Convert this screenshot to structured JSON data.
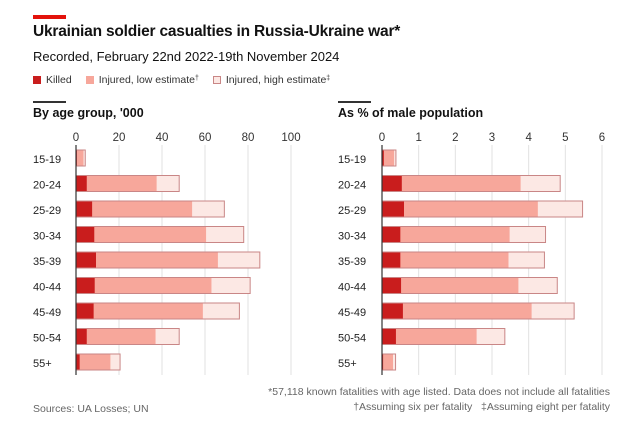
{
  "header": {
    "title": "Ukrainian soldier casualties in Russia-Ukraine war*",
    "subtitle": "Recorded, February 22nd 2022-19th November 2024",
    "legend": [
      {
        "label": "Killed",
        "mark": ""
      },
      {
        "label": "Injured, low estimate",
        "mark": "†"
      },
      {
        "label": "Injured, high estimate",
        "mark": "‡"
      }
    ]
  },
  "colors": {
    "accent": "#e3120b",
    "killed": "#c91d1d",
    "injured_low": "#f7a79b",
    "injured_high": "#fce8e4",
    "bar_outline": "#c98686",
    "grid": "#e2e2e2"
  },
  "chart_data": [
    {
      "type": "bar",
      "orientation": "horizontal",
      "stacked": true,
      "title": "By age group, '000",
      "xlabel": "",
      "ylabel": "",
      "xlim": [
        0,
        100
      ],
      "xticks": [
        0,
        20,
        40,
        60,
        80,
        100
      ],
      "grid": true,
      "categories": [
        "15-19",
        "20-24",
        "25-29",
        "30-34",
        "35-39",
        "40-44",
        "45-49",
        "50-54",
        "55+"
      ],
      "series": [
        {
          "name": "Killed",
          "cumulative_end": [
            0.4,
            5.0,
            7.5,
            8.5,
            9.3,
            8.7,
            8.2,
            5.0,
            1.7
          ]
        },
        {
          "name": "Injured, low estimate",
          "cumulative_end": [
            3.5,
            37.5,
            54.0,
            60.5,
            66.0,
            63.0,
            59.0,
            37.0,
            16.0
          ]
        },
        {
          "name": "Injured, high estimate",
          "cumulative_end": [
            4.3,
            48.0,
            69.0,
            78.0,
            85.5,
            81.0,
            76.0,
            48.0,
            20.5
          ]
        }
      ]
    },
    {
      "type": "bar",
      "orientation": "horizontal",
      "stacked": true,
      "title": "As % of male population",
      "xlabel": "",
      "ylabel": "",
      "xlim": [
        0,
        6
      ],
      "xticks": [
        0,
        1,
        2,
        3,
        4,
        5,
        6
      ],
      "grid": true,
      "categories": [
        "15-19",
        "20-24",
        "25-29",
        "30-34",
        "35-39",
        "40-44",
        "45-49",
        "50-54",
        "55+"
      ],
      "series": [
        {
          "name": "Killed",
          "cumulative_end": [
            0.05,
            0.54,
            0.6,
            0.5,
            0.5,
            0.52,
            0.57,
            0.38,
            0.03
          ]
        },
        {
          "name": "Injured, low estimate",
          "cumulative_end": [
            0.33,
            3.78,
            4.25,
            3.48,
            3.45,
            3.72,
            4.08,
            2.58,
            0.3
          ]
        },
        {
          "name": "Injured, high estimate",
          "cumulative_end": [
            0.38,
            4.86,
            5.47,
            4.46,
            4.43,
            4.78,
            5.24,
            3.35,
            0.37
          ]
        }
      ]
    }
  ],
  "footer": {
    "note_1": "*57,118 known fatalities with age listed. Data does not include all fatalities",
    "note_2a": "†Assuming six per fatality",
    "note_2b": "‡Assuming eight per fatality",
    "source": "Sources: UA Losses; UN"
  }
}
